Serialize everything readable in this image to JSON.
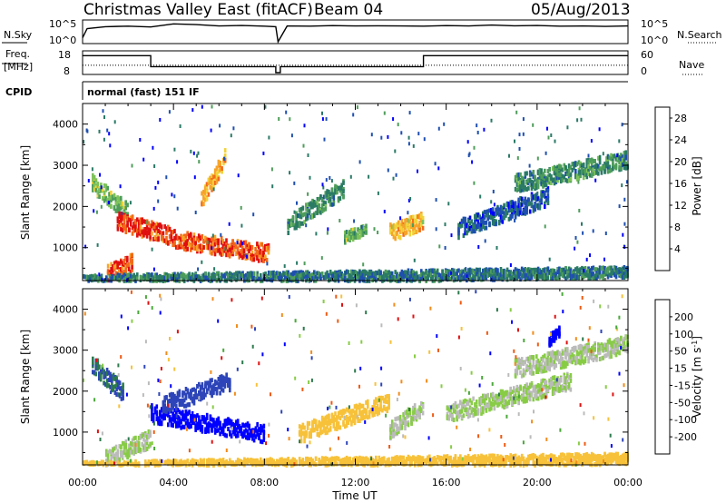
{
  "header": {
    "title": "Christmas Valley East (fitACF)",
    "beam": "Beam 04",
    "date": "05/Aug/2013"
  },
  "status_panels": {
    "nsky_label": "N.Sky",
    "nsky_ticks": [
      "10^5",
      "10^0"
    ],
    "nsearch_label": "N.Search",
    "nsearch_ticks": [
      "10^5",
      "10^0"
    ],
    "freq_label_line1": "Freq.",
    "freq_label_line2": "[MHz]",
    "freq_ticks": [
      "18",
      "8"
    ],
    "nave_label": "Nave",
    "nave_ticks": [
      "60",
      "0"
    ],
    "cpid_label": "CPID",
    "cpid_text": "normal (fast) 151 IF"
  },
  "x_axis": {
    "label": "Time UT",
    "ticks": [
      "00:00",
      "04:00",
      "08:00",
      "12:00",
      "16:00",
      "20:00",
      "00:00"
    ],
    "range_hours": [
      0,
      24
    ]
  },
  "colors": {
    "power_scale": [
      "#0000ff",
      "#1e4fb0",
      "#2a7a66",
      "#4e9d5a",
      "#7ec25a",
      "#f2d23a",
      "#f7a42a",
      "#f26a1a",
      "#e01010"
    ],
    "velocity_scale": [
      "#0000ff",
      "#2d45b8",
      "#2c7a4c",
      "#4aa83a",
      "#88cc46",
      "#bbbbbb",
      "#f7c23a",
      "#f28c1c",
      "#ef5a12",
      "#e01010"
    ]
  },
  "chart_data": [
    {
      "type": "line",
      "panel": "N.Sky / N.Search",
      "ylabel": "N.Sky",
      "y2label": "N.Search",
      "x": [
        0,
        0.2,
        1,
        2,
        3,
        4,
        5,
        6,
        7,
        8,
        8.5,
        8.6,
        9,
        10,
        11,
        12,
        13,
        14,
        15,
        16,
        17,
        18,
        19,
        20,
        21,
        22,
        23,
        24
      ],
      "series": [
        {
          "name": "N.Sky",
          "values": [
            10,
            2000,
            6000,
            8000,
            5000,
            30000,
            20000,
            9000,
            12000,
            8000,
            6000,
            1,
            9000,
            8000,
            11000,
            9000,
            10000,
            9000,
            8000,
            11000,
            9000,
            15000,
            10000,
            12000,
            8000,
            9000,
            7000,
            9000
          ]
        }
      ],
      "ylim": [
        1,
        100000
      ],
      "log_scale": true
    },
    {
      "type": "line",
      "panel": "Freq. / Nave",
      "ylabel": "Freq. [MHz]",
      "y2label": "Nave",
      "series": [
        {
          "name": "Freq.",
          "x": [
            0,
            3,
            3,
            8.5,
            8.5,
            8.7,
            8.7,
            15,
            15,
            24
          ],
          "values": [
            16.5,
            16.5,
            11,
            11,
            8,
            8,
            11,
            11,
            16.5,
            16.5
          ]
        },
        {
          "name": "Nave",
          "x": [
            0,
            24
          ],
          "values": [
            22,
            22
          ]
        }
      ],
      "ylim": [
        8,
        18
      ],
      "y2lim": [
        0,
        60
      ]
    },
    {
      "type": "heatmap",
      "panel": "Power",
      "xlabel": "Time UT",
      "ylabel": "Slant Range [km]",
      "yticks": [
        1000,
        2000,
        3000,
        4000
      ],
      "ylim": [
        200,
        4500
      ],
      "colorbar": {
        "label": "Power [dB]",
        "ticks": [
          4,
          8,
          12,
          16,
          20,
          24,
          28
        ],
        "range": [
          0,
          30
        ]
      },
      "features": [
        {
          "t_start": 0.4,
          "t_end": 2.0,
          "range_start": 2600,
          "range_end": 1900,
          "level": 14
        },
        {
          "t_start": 1.5,
          "t_end": 4.0,
          "range_start": 1700,
          "range_end": 1300,
          "level": 27
        },
        {
          "t_start": 4.0,
          "t_end": 8.2,
          "range_start": 1250,
          "range_end": 900,
          "level": 26
        },
        {
          "t_start": 1.0,
          "t_end": 2.2,
          "range_start": 400,
          "range_end": 700,
          "level": 26
        },
        {
          "t_start": 5.2,
          "t_end": 6.3,
          "range_start": 2200,
          "range_end": 3300,
          "level": 22
        },
        {
          "t_start": 9.0,
          "t_end": 11.5,
          "range_start": 1600,
          "range_end": 2500,
          "level": 10
        },
        {
          "t_start": 11.5,
          "t_end": 12.5,
          "range_start": 1300,
          "range_end": 1500,
          "level": 13
        },
        {
          "t_start": 13.5,
          "t_end": 15.0,
          "range_start": 1400,
          "range_end": 1700,
          "level": 20
        },
        {
          "t_start": 16.5,
          "t_end": 20.5,
          "range_start": 1500,
          "range_end": 2300,
          "level": 6
        },
        {
          "t_start": 19.0,
          "t_end": 24.0,
          "range_start": 2600,
          "range_end": 3200,
          "level": 10
        },
        {
          "t_start": 0.0,
          "t_end": 24.0,
          "range_start": 250,
          "range_end": 450,
          "level": 8
        }
      ]
    },
    {
      "type": "heatmap",
      "panel": "Velocity",
      "xlabel": "Time UT",
      "ylabel": "Slant Range [km]",
      "yticks": [
        1000,
        2000,
        3000,
        4000
      ],
      "ylim": [
        200,
        4500
      ],
      "colorbar": {
        "label": "Velocity [m s^-1]",
        "ticks": [
          200,
          100,
          50,
          15,
          -15,
          -50,
          -100,
          -200
        ],
        "range": [
          -250,
          250
        ]
      },
      "features": [
        {
          "t_start": 0.4,
          "t_end": 1.8,
          "range_start": 2700,
          "range_end": 2000,
          "level": 150
        },
        {
          "t_start": 3.0,
          "t_end": 8.0,
          "range_start": 1500,
          "range_end": 1000,
          "level": 220
        },
        {
          "t_start": 3.5,
          "t_end": 6.5,
          "range_start": 1700,
          "range_end": 2300,
          "level": 180
        },
        {
          "t_start": 1.0,
          "t_end": 3.0,
          "range_start": 400,
          "range_end": 900,
          "level": 0
        },
        {
          "t_start": 9.5,
          "t_end": 13.5,
          "range_start": 1000,
          "range_end": 1800,
          "level": -80
        },
        {
          "t_start": 13.5,
          "t_end": 15.0,
          "range_start": 1100,
          "range_end": 1700,
          "level": 0
        },
        {
          "t_start": 16.0,
          "t_end": 21.5,
          "range_start": 1500,
          "range_end": 2300,
          "level": 0
        },
        {
          "t_start": 19.0,
          "t_end": 24.0,
          "range_start": 2600,
          "range_end": 3200,
          "level": 0
        },
        {
          "t_start": 20.5,
          "t_end": 21.0,
          "range_start": 3300,
          "range_end": 3500,
          "level": 220
        },
        {
          "t_start": 0.0,
          "t_end": 24.0,
          "range_start": 200,
          "range_end": 400,
          "level": -80
        }
      ]
    }
  ]
}
